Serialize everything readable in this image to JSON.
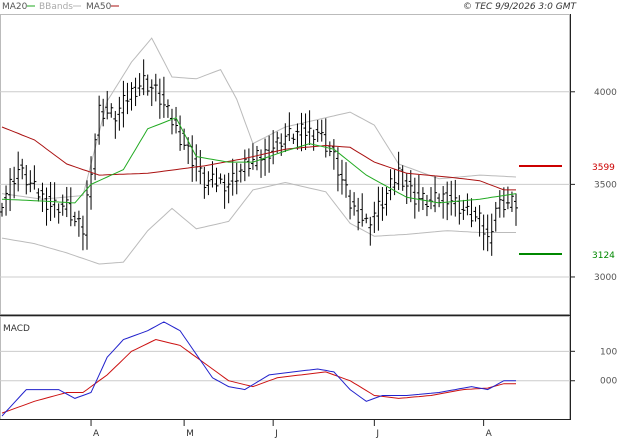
{
  "header": {
    "legend": [
      {
        "label": "MA20",
        "color": "#22aa22"
      },
      {
        "label": "BBands",
        "color": "#bbbbbb"
      },
      {
        "label": "MA50",
        "color": "#aa1111"
      }
    ],
    "timestamp": "© TEC 9/9/2026 3:0 GMT"
  },
  "colors": {
    "price_bars": "#000000",
    "ma20": "#22aa22",
    "ma50": "#aa1111",
    "bbands": "#bbbbbb",
    "macd": "#2222cc",
    "signal": "#cc1111",
    "resistance": "#cc0000",
    "support": "#008800",
    "grid": "#cccccc"
  },
  "chart_data": [
    {
      "type": "line",
      "panel": "price",
      "ylim": [
        2800,
        4420
      ],
      "yticks": [
        3000,
        3500,
        4000
      ],
      "ytick_labels": [
        "3000",
        "3500",
        "4000"
      ],
      "x_count": 128,
      "xticks": [
        {
          "label": "A",
          "index": 22
        },
        {
          "label": "M",
          "index": 45
        },
        {
          "label": "J",
          "index": 67
        },
        {
          "label": "J",
          "index": 92
        },
        {
          "label": "A",
          "index": 119
        }
      ],
      "annotations": [
        {
          "label": "3599",
          "value": 3599,
          "color": "#cc0000"
        },
        {
          "label": "3124",
          "value": 3124,
          "color": "#008800"
        }
      ],
      "ma20_anchors": [
        [
          0,
          3420
        ],
        [
          10,
          3410
        ],
        [
          18,
          3400
        ],
        [
          22,
          3500
        ],
        [
          30,
          3580
        ],
        [
          36,
          3800
        ],
        [
          43,
          3860
        ],
        [
          48,
          3650
        ],
        [
          56,
          3620
        ],
        [
          62,
          3620
        ],
        [
          70,
          3680
        ],
        [
          76,
          3720
        ],
        [
          82,
          3690
        ],
        [
          90,
          3550
        ],
        [
          100,
          3430
        ],
        [
          108,
          3400
        ],
        [
          118,
          3420
        ],
        [
          127,
          3450
        ]
      ],
      "ma50_anchors": [
        [
          0,
          3810
        ],
        [
          8,
          3740
        ],
        [
          16,
          3610
        ],
        [
          24,
          3550
        ],
        [
          36,
          3560
        ],
        [
          50,
          3600
        ],
        [
          60,
          3640
        ],
        [
          70,
          3690
        ],
        [
          80,
          3710
        ],
        [
          86,
          3700
        ],
        [
          92,
          3620
        ],
        [
          100,
          3560
        ],
        [
          110,
          3540
        ],
        [
          118,
          3520
        ],
        [
          124,
          3470
        ]
      ],
      "bb_upper_anchors": [
        [
          0,
          3450
        ],
        [
          10,
          3420
        ],
        [
          20,
          3440
        ],
        [
          26,
          3950
        ],
        [
          32,
          4160
        ],
        [
          37,
          4290
        ],
        [
          42,
          4080
        ],
        [
          48,
          4070
        ],
        [
          54,
          4120
        ],
        [
          58,
          3960
        ],
        [
          62,
          3720
        ],
        [
          70,
          3810
        ],
        [
          80,
          3860
        ],
        [
          86,
          3890
        ],
        [
          92,
          3820
        ],
        [
          98,
          3610
        ],
        [
          108,
          3530
        ],
        [
          118,
          3550
        ],
        [
          127,
          3540
        ]
      ],
      "bb_lower_anchors": [
        [
          0,
          3210
        ],
        [
          8,
          3180
        ],
        [
          16,
          3130
        ],
        [
          24,
          3070
        ],
        [
          30,
          3080
        ],
        [
          36,
          3250
        ],
        [
          42,
          3370
        ],
        [
          48,
          3260
        ],
        [
          56,
          3300
        ],
        [
          62,
          3470
        ],
        [
          70,
          3510
        ],
        [
          80,
          3460
        ],
        [
          86,
          3290
        ],
        [
          92,
          3220
        ],
        [
          100,
          3230
        ],
        [
          110,
          3250
        ],
        [
          118,
          3240
        ],
        [
          127,
          3240
        ]
      ],
      "close_anchors": [
        [
          0,
          3420
        ],
        [
          4,
          3580
        ],
        [
          8,
          3470
        ],
        [
          12,
          3390
        ],
        [
          16,
          3380
        ],
        [
          18,
          3290
        ],
        [
          20,
          3250
        ],
        [
          22,
          3600
        ],
        [
          24,
          3900
        ],
        [
          28,
          3870
        ],
        [
          32,
          4000
        ],
        [
          35,
          4060
        ],
        [
          38,
          4000
        ],
        [
          42,
          3840
        ],
        [
          46,
          3680
        ],
        [
          50,
          3510
        ],
        [
          56,
          3510
        ],
        [
          60,
          3600
        ],
        [
          64,
          3650
        ],
        [
          70,
          3760
        ],
        [
          74,
          3780
        ],
        [
          78,
          3790
        ],
        [
          82,
          3640
        ],
        [
          86,
          3390
        ],
        [
          90,
          3290
        ],
        [
          94,
          3400
        ],
        [
          98,
          3570
        ],
        [
          102,
          3430
        ],
        [
          106,
          3400
        ],
        [
          110,
          3440
        ],
        [
          114,
          3360
        ],
        [
          118,
          3300
        ],
        [
          120,
          3200
        ],
        [
          122,
          3380
        ],
        [
          124,
          3400
        ]
      ]
    },
    {
      "type": "line",
      "panel": "macd",
      "title": "MACD",
      "ylim": [
        -130,
        220
      ],
      "yticks": [
        0,
        100
      ],
      "ytick_labels": [
        "000",
        "100"
      ],
      "macd_anchors": [
        [
          0,
          -120
        ],
        [
          6,
          -30
        ],
        [
          14,
          -30
        ],
        [
          18,
          -60
        ],
        [
          22,
          -40
        ],
        [
          26,
          80
        ],
        [
          30,
          140
        ],
        [
          36,
          170
        ],
        [
          40,
          200
        ],
        [
          44,
          170
        ],
        [
          48,
          90
        ],
        [
          52,
          10
        ],
        [
          56,
          -20
        ],
        [
          60,
          -30
        ],
        [
          66,
          20
        ],
        [
          72,
          30
        ],
        [
          78,
          40
        ],
        [
          82,
          30
        ],
        [
          86,
          -30
        ],
        [
          90,
          -70
        ],
        [
          94,
          -50
        ],
        [
          100,
          -50
        ],
        [
          108,
          -40
        ],
        [
          116,
          -20
        ],
        [
          120,
          -30
        ],
        [
          124,
          0
        ]
      ],
      "signal_anchors": [
        [
          0,
          -110
        ],
        [
          8,
          -70
        ],
        [
          16,
          -40
        ],
        [
          20,
          -40
        ],
        [
          26,
          20
        ],
        [
          32,
          100
        ],
        [
          38,
          140
        ],
        [
          44,
          120
        ],
        [
          50,
          60
        ],
        [
          56,
          0
        ],
        [
          62,
          -20
        ],
        [
          68,
          10
        ],
        [
          74,
          20
        ],
        [
          80,
          30
        ],
        [
          86,
          0
        ],
        [
          92,
          -50
        ],
        [
          98,
          -60
        ],
        [
          106,
          -50
        ],
        [
          114,
          -30
        ],
        [
          120,
          -25
        ],
        [
          124,
          -10
        ]
      ]
    }
  ]
}
